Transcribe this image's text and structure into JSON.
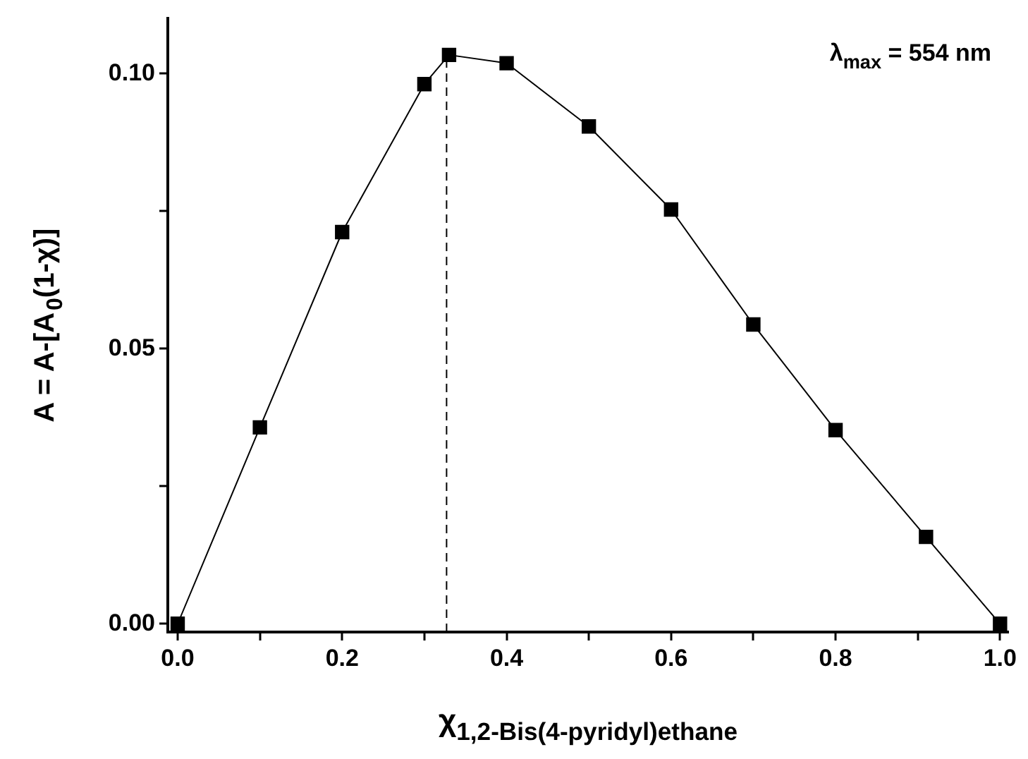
{
  "chart_data": {
    "type": "line",
    "xlabel": "χ$_{1,2-Bis(4-pyridyl)ethane}$",
    "ylabel": "A = A-[A$_{0}$(1-χ)]",
    "x": [
      0,
      0.1,
      0.2,
      0.3,
      0.33,
      0.4,
      0.5,
      0.6,
      0.7,
      0.8,
      0.91,
      1.0
    ],
    "series": [
      {
        "color": "#000000",
        "values": [
          0,
          0.0357,
          0.0712,
          0.0981,
          0.1034,
          0.1019,
          0.0904,
          0.0753,
          0.0544,
          0.0352,
          0.0158,
          0
        ]
      }
    ],
    "xlim": [
      -0.012,
      1.01
    ],
    "ylim": [
      -0.0015,
      0.11
    ],
    "xticks": [
      {
        "value": 0,
        "label": "0.0"
      },
      {
        "value": 0.1,
        "label": null
      },
      0.2,
      {
        "value": 0.3,
        "label": null
      },
      0.4,
      {
        "value": 0.5,
        "label": null
      },
      0.6,
      {
        "value": 0.7,
        "label": null
      },
      0.8,
      {
        "value": 0.9,
        "label": null
      },
      {
        "value": 1.0,
        "label": "1.0"
      }
    ],
    "yticks": [
      {
        "value": 0,
        "label": "0.00"
      },
      {
        "value": 0.025,
        "label": null
      },
      {
        "value": 0.05,
        "label": "0.05"
      },
      {
        "value": 0.075,
        "label": null
      },
      {
        "value": 0.1,
        "label": "0.10"
      }
    ],
    "ref_lines": [
      {
        "axis": "x",
        "value": 0.327,
        "line_style": "dashed",
        "color": "#000000"
      }
    ],
    "annotations": [
      "λ$_{max}$ = 554 nm"
    ],
    "marker": "square",
    "line_style": "solid",
    "grid": false,
    "legend": false
  }
}
